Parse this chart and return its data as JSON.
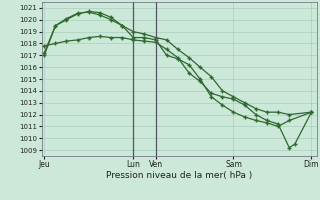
{
  "bg_color": "#cce8d8",
  "grid_color": "#aacfbe",
  "line_color": "#2d6a2d",
  "marker_color": "#2d6a2d",
  "xlabel": "Pression niveau de la mer( hPa )",
  "ylim": [
    1008.5,
    1021.5
  ],
  "yticks": [
    1009,
    1010,
    1011,
    1012,
    1013,
    1014,
    1015,
    1016,
    1017,
    1018,
    1019,
    1020,
    1021
  ],
  "xtick_labels": [
    "Jeu",
    "Lun",
    "Ven",
    "Sam",
    "Dim"
  ],
  "xtick_positions": [
    0.0,
    0.333,
    0.4167,
    0.708,
    1.0
  ],
  "vline_x": [
    0.333,
    0.4167
  ],
  "line1_pts": [
    [
      0.0,
      1017.0
    ],
    [
      0.042,
      1019.5
    ],
    [
      0.083,
      1020.0
    ],
    [
      0.125,
      1020.5
    ],
    [
      0.167,
      1020.7
    ],
    [
      0.208,
      1020.6
    ],
    [
      0.25,
      1020.2
    ],
    [
      0.292,
      1019.5
    ],
    [
      0.333,
      1018.5
    ],
    [
      0.375,
      1018.5
    ],
    [
      0.417,
      1018.3
    ],
    [
      0.458,
      1017.0
    ],
    [
      0.5,
      1016.7
    ],
    [
      0.542,
      1016.2
    ],
    [
      0.583,
      1015.0
    ],
    [
      0.625,
      1013.5
    ],
    [
      0.667,
      1012.8
    ],
    [
      0.708,
      1012.2
    ],
    [
      0.75,
      1011.8
    ],
    [
      0.792,
      1011.5
    ],
    [
      0.833,
      1011.3
    ],
    [
      0.875,
      1011.0
    ],
    [
      0.917,
      1011.5
    ],
    [
      1.0,
      1012.2
    ]
  ],
  "line2_pts": [
    [
      0.0,
      1017.2
    ],
    [
      0.042,
      1019.5
    ],
    [
      0.083,
      1020.1
    ],
    [
      0.125,
      1020.55
    ],
    [
      0.167,
      1020.65
    ],
    [
      0.208,
      1020.4
    ],
    [
      0.25,
      1020.0
    ],
    [
      0.292,
      1019.5
    ],
    [
      0.333,
      1019.0
    ],
    [
      0.375,
      1018.8
    ],
    [
      0.417,
      1018.5
    ],
    [
      0.458,
      1018.3
    ],
    [
      0.5,
      1017.5
    ],
    [
      0.542,
      1016.8
    ],
    [
      0.583,
      1016.0
    ],
    [
      0.625,
      1015.2
    ],
    [
      0.667,
      1014.0
    ],
    [
      0.708,
      1013.5
    ],
    [
      0.75,
      1013.0
    ],
    [
      0.792,
      1012.5
    ],
    [
      0.833,
      1012.2
    ],
    [
      0.875,
      1012.2
    ],
    [
      0.917,
      1012.0
    ],
    [
      1.0,
      1012.2
    ]
  ],
  "line3_pts": [
    [
      0.0,
      1017.8
    ],
    [
      0.042,
      1018.0
    ],
    [
      0.083,
      1018.2
    ],
    [
      0.125,
      1018.3
    ],
    [
      0.167,
      1018.5
    ],
    [
      0.208,
      1018.6
    ],
    [
      0.25,
      1018.5
    ],
    [
      0.292,
      1018.5
    ],
    [
      0.333,
      1018.3
    ],
    [
      0.375,
      1018.2
    ],
    [
      0.417,
      1018.1
    ],
    [
      0.458,
      1017.5
    ],
    [
      0.5,
      1016.8
    ],
    [
      0.542,
      1015.5
    ],
    [
      0.583,
      1014.8
    ],
    [
      0.625,
      1013.8
    ],
    [
      0.667,
      1013.5
    ],
    [
      0.708,
      1013.3
    ],
    [
      0.75,
      1012.8
    ],
    [
      0.792,
      1012.0
    ],
    [
      0.833,
      1011.5
    ],
    [
      0.875,
      1011.2
    ],
    [
      0.917,
      1009.2
    ],
    [
      0.9375,
      1009.5
    ],
    [
      1.0,
      1012.2
    ]
  ]
}
